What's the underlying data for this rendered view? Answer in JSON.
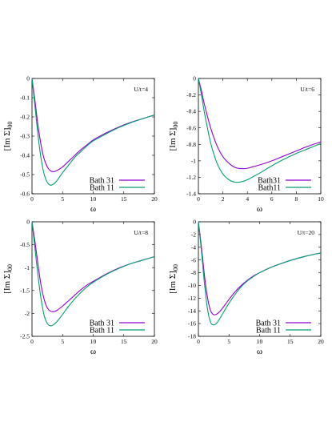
{
  "chart_data": [
    {
      "type": "line",
      "annotation": "U/t=4",
      "xlabel": "ω",
      "ylabel": "[Im Σ]",
      "ylabel_sub": "00",
      "xlim": [
        0,
        20
      ],
      "ylim": [
        -0.6,
        0
      ],
      "xticks": [
        0,
        5,
        10,
        15,
        20
      ],
      "yticks": [
        0,
        -0.1,
        -0.2,
        -0.3,
        -0.4,
        -0.5,
        -0.6
      ],
      "grid": false,
      "legend_position": "bottom-right",
      "series": [
        {
          "name": "Bath 31",
          "color": "#9400d3",
          "x": [
            0,
            0.5,
            1,
            1.5,
            2,
            2.5,
            3,
            3.5,
            4,
            5,
            6,
            7,
            8,
            9,
            10,
            12,
            14,
            16,
            18,
            20
          ],
          "y": [
            0,
            -0.12,
            -0.25,
            -0.35,
            -0.42,
            -0.46,
            -0.48,
            -0.485,
            -0.48,
            -0.46,
            -0.43,
            -0.4,
            -0.37,
            -0.345,
            -0.32,
            -0.285,
            -0.255,
            -0.23,
            -0.21,
            -0.19
          ]
        },
        {
          "name": "Bath 11",
          "color": "#009e73",
          "x": [
            0,
            0.5,
            1,
            1.5,
            2,
            2.5,
            3,
            3.5,
            4,
            5,
            6,
            7,
            8,
            9,
            10,
            12,
            14,
            16,
            18,
            20
          ],
          "y": [
            0,
            -0.15,
            -0.3,
            -0.42,
            -0.5,
            -0.54,
            -0.555,
            -0.55,
            -0.535,
            -0.49,
            -0.45,
            -0.41,
            -0.38,
            -0.35,
            -0.325,
            -0.29,
            -0.258,
            -0.232,
            -0.21,
            -0.19
          ]
        }
      ]
    },
    {
      "type": "line",
      "annotation": "U/t=6",
      "xlabel": "ω",
      "ylabel": "[Im Σ]",
      "ylabel_sub": "00",
      "xlim": [
        0,
        10
      ],
      "ylim": [
        -1.4,
        0
      ],
      "xticks": [
        0,
        2,
        4,
        6,
        8,
        10
      ],
      "yticks": [
        0,
        -0.2,
        -0.4,
        -0.6,
        -0.8,
        -1,
        -1.2,
        -1.4
      ],
      "grid": false,
      "legend_position": "bottom-right",
      "series": [
        {
          "name": "Bath31",
          "color": "#9400d3",
          "x": [
            0,
            0.25,
            0.5,
            1,
            1.5,
            2,
            2.5,
            3,
            3.5,
            4,
            4.5,
            5,
            6,
            7,
            8,
            9,
            10
          ],
          "y": [
            0,
            -0.15,
            -0.32,
            -0.6,
            -0.81,
            -0.95,
            -1.03,
            -1.08,
            -1.095,
            -1.09,
            -1.07,
            -1.05,
            -1.0,
            -0.94,
            -0.88,
            -0.82,
            -0.77
          ]
        },
        {
          "name": "Bath11",
          "color": "#009e73",
          "x": [
            0,
            0.25,
            0.5,
            1,
            1.5,
            2,
            2.5,
            3,
            3.5,
            4,
            4.5,
            5,
            6,
            7,
            8,
            9,
            10
          ],
          "y": [
            0,
            -0.2,
            -0.42,
            -0.78,
            -1.02,
            -1.16,
            -1.23,
            -1.26,
            -1.255,
            -1.23,
            -1.19,
            -1.15,
            -1.06,
            -0.98,
            -0.91,
            -0.85,
            -0.79
          ]
        }
      ]
    },
    {
      "type": "line",
      "annotation": "U/t=8",
      "xlabel": "ω",
      "ylabel": "[Im Σ]",
      "ylabel_sub": "00",
      "xlim": [
        0,
        20
      ],
      "ylim": [
        -2.5,
        0
      ],
      "xticks": [
        0,
        5,
        10,
        15,
        20
      ],
      "yticks": [
        0,
        -0.5,
        -1,
        -1.5,
        -2,
        -2.5
      ],
      "grid": false,
      "legend_position": "bottom-right",
      "series": [
        {
          "name": "Bath 31",
          "color": "#9400d3",
          "x": [
            0,
            0.5,
            1,
            1.5,
            2,
            2.5,
            3,
            3.5,
            4,
            5,
            6,
            7,
            8,
            9,
            10,
            12,
            14,
            16,
            18,
            20
          ],
          "y": [
            0,
            -0.45,
            -0.95,
            -1.4,
            -1.7,
            -1.88,
            -1.95,
            -1.96,
            -1.94,
            -1.84,
            -1.72,
            -1.6,
            -1.48,
            -1.38,
            -1.3,
            -1.15,
            -1.02,
            -0.92,
            -0.84,
            -0.76
          ]
        },
        {
          "name": "Bath 11",
          "color": "#009e73",
          "x": [
            0,
            0.5,
            1,
            1.5,
            2,
            2.5,
            3,
            3.5,
            4,
            5,
            6,
            7,
            8,
            9,
            10,
            12,
            14,
            16,
            18,
            20
          ],
          "y": [
            0,
            -0.6,
            -1.2,
            -1.7,
            -2.05,
            -2.22,
            -2.27,
            -2.25,
            -2.19,
            -2.02,
            -1.84,
            -1.68,
            -1.54,
            -1.42,
            -1.32,
            -1.16,
            -1.03,
            -0.92,
            -0.84,
            -0.76
          ]
        }
      ]
    },
    {
      "type": "line",
      "annotation": "U/t=20",
      "xlabel": "ω",
      "ylabel": "[Im Σ]",
      "ylabel_sub": "00",
      "xlim": [
        0,
        20
      ],
      "ylim": [
        -18,
        0
      ],
      "xticks": [
        0,
        5,
        10,
        15,
        20
      ],
      "yticks": [
        0,
        -2,
        -4,
        -6,
        -8,
        -10,
        -12,
        -14,
        -16,
        -18
      ],
      "grid": false,
      "legend_position": "bottom-right",
      "series": [
        {
          "name": "Bath 31",
          "color": "#9400d3",
          "x": [
            0,
            0.5,
            1,
            1.5,
            2,
            2.5,
            3,
            3.5,
            4,
            5,
            6,
            7,
            8,
            9,
            10,
            12,
            14,
            16,
            18,
            20
          ],
          "y": [
            0,
            -4.0,
            -8.5,
            -12.0,
            -14.0,
            -14.6,
            -14.5,
            -14.1,
            -13.5,
            -12.2,
            -11.0,
            -10.0,
            -9.2,
            -8.5,
            -8.0,
            -7.1,
            -6.4,
            -5.8,
            -5.3,
            -4.9
          ]
        },
        {
          "name": "Bath 11",
          "color": "#009e73",
          "x": [
            0,
            0.5,
            1,
            1.5,
            2,
            2.5,
            3,
            3.5,
            4,
            5,
            6,
            7,
            8,
            9,
            10,
            12,
            14,
            16,
            18,
            20
          ],
          "y": [
            0,
            -4.6,
            -9.8,
            -13.8,
            -15.8,
            -16.2,
            -15.9,
            -15.2,
            -14.4,
            -12.8,
            -11.4,
            -10.2,
            -9.3,
            -8.6,
            -8.0,
            -7.1,
            -6.4,
            -5.8,
            -5.3,
            -4.9
          ]
        }
      ]
    }
  ]
}
